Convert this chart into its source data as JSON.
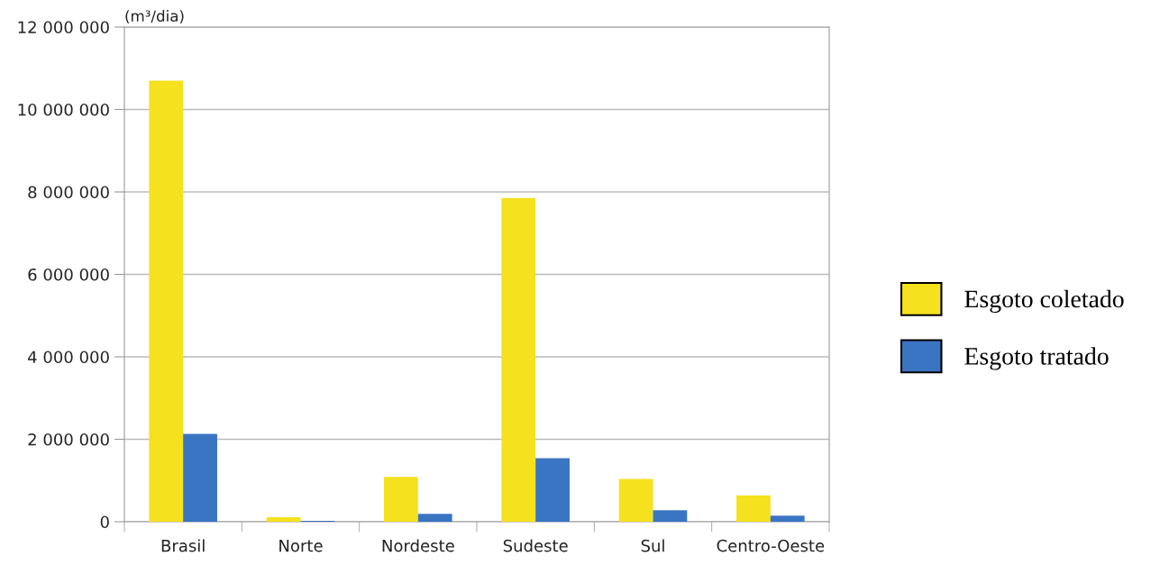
{
  "chart_data": {
    "type": "bar",
    "ylabel": "(m³/dia)",
    "categories": [
      "Brasil",
      "Norte",
      "Nordeste",
      "Sudeste",
      "Sul",
      "Centro-Oeste"
    ],
    "series": [
      {
        "name": "Esgoto coletado",
        "color": "#f5e11e",
        "values": [
          10700000,
          110000,
          1090000,
          7850000,
          1040000,
          640000
        ]
      },
      {
        "name": "Esgoto tratado",
        "color": "#3a75c4",
        "values": [
          2130000,
          20000,
          190000,
          1540000,
          280000,
          150000
        ]
      }
    ],
    "ylim": [
      0,
      12000000
    ],
    "yticks": [
      {
        "value": 0,
        "label": "0"
      },
      {
        "value": 2000000,
        "label": "2 000 000"
      },
      {
        "value": 4000000,
        "label": "4 000 000"
      },
      {
        "value": 6000000,
        "label": "6 000 000"
      },
      {
        "value": 8000000,
        "label": "8 000 000"
      },
      {
        "value": 10000000,
        "label": "10 000 000"
      },
      {
        "value": 12000000,
        "label": "12 000 000"
      }
    ],
    "grid": "y",
    "legend": "right"
  }
}
